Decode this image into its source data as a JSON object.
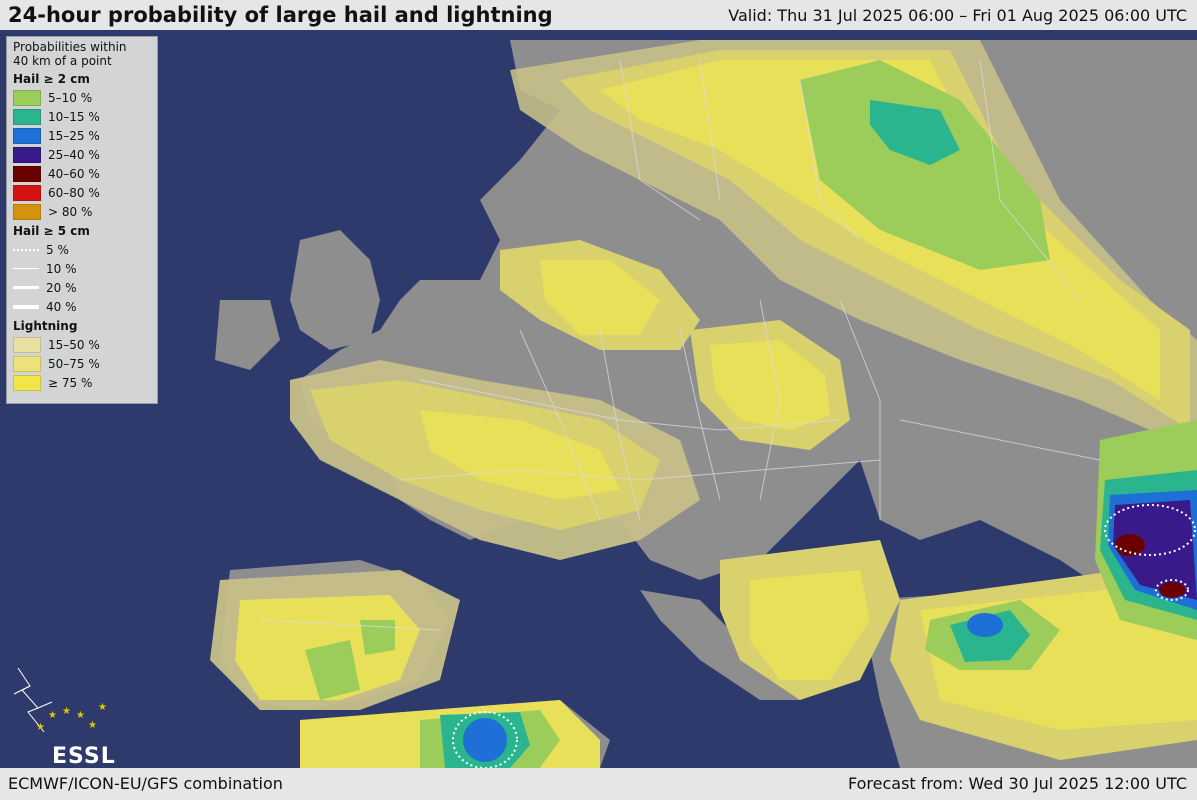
{
  "header": {
    "title": "24-hour probability of large hail and lightning",
    "valid": "Valid: Thu 31 Jul 2025 06:00 – Fri 01 Aug 2025 06:00 UTC"
  },
  "footer": {
    "model": "ECMWF/ICON-EU/GFS combination",
    "forecast": "Forecast from: Wed 30 Jul 2025 12:00 UTC"
  },
  "legend": {
    "heading": [
      "Probabilities within",
      "40 km of a point"
    ],
    "hail2": {
      "title": "Hail ≥ 2 cm",
      "items": [
        {
          "label": "5–10 %",
          "color": "#9ccc5a"
        },
        {
          "label": "10–15 %",
          "color": "#2bb58e"
        },
        {
          "label": "15–25 %",
          "color": "#1e6fd6"
        },
        {
          "label": "25–40 %",
          "color": "#3a1a8a"
        },
        {
          "label": "40–60 %",
          "color": "#6b0000"
        },
        {
          "label": "60–80 %",
          "color": "#d41414"
        },
        {
          "label": "> 80 %",
          "color": "#d4920e"
        }
      ]
    },
    "hail5": {
      "title": "Hail ≥ 5 cm",
      "items": [
        {
          "label": "5 %",
          "style": "dotted"
        },
        {
          "label": "10 %",
          "style": "thin"
        },
        {
          "label": "20 %",
          "style": "medium"
        },
        {
          "label": "40 %",
          "style": "thick"
        }
      ]
    },
    "lightning": {
      "title": "Lightning",
      "items": [
        {
          "label": "15–50 %",
          "color": "#e8e0a0"
        },
        {
          "label": "50–75 %",
          "color": "#ebe37a"
        },
        {
          "label": "≥ 75 %",
          "color": "#f0e64a"
        }
      ]
    }
  },
  "logo": {
    "text": "ESSL"
  },
  "colors": {
    "sea": "#2d3a6b",
    "land": "#8e8e8e",
    "lightning_low": "#c7c08a",
    "lightning_mid": "#d9d06e",
    "lightning_high": "#e9e05a"
  }
}
